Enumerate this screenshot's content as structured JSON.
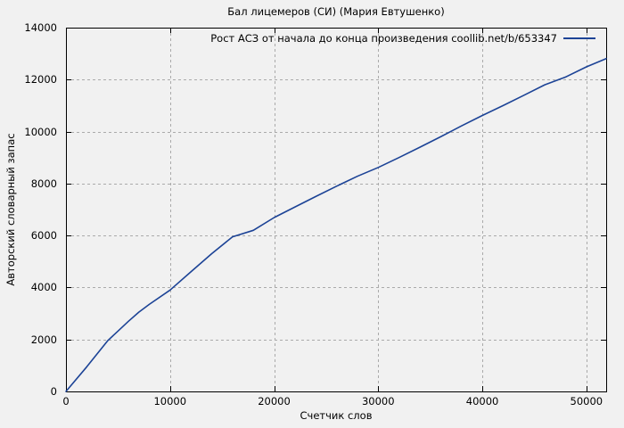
{
  "figure": {
    "kind": "gnuplot-style line chart"
  },
  "colors": {
    "background": "#f1f1f1",
    "axis": "#000000",
    "grid": "#aaaaaa",
    "curve": "#1c4396",
    "text": "#000000"
  },
  "chart_data": {
    "type": "line",
    "title": "Бал лицемеров (СИ) (Мария Евтушенко)",
    "xlabel": "Счетчик слов",
    "ylabel": "Авторский словарный запас",
    "xlim": [
      0,
      51900
    ],
    "ylim": [
      0,
      14000
    ],
    "grid": true,
    "grid_style": "dashed",
    "x_ticks": [
      0,
      10000,
      20000,
      30000,
      40000,
      50000
    ],
    "x_tick_labels": [
      "0",
      "10000",
      "20000",
      "30000",
      "40000",
      "50000"
    ],
    "y_ticks": [
      0,
      2000,
      4000,
      6000,
      8000,
      10000,
      12000,
      14000
    ],
    "y_tick_labels": [
      "0",
      "2000",
      "4000",
      "6000",
      "8000",
      "10000",
      "12000",
      "14000"
    ],
    "legend": {
      "position": "top-right-inside",
      "entries": [
        {
          "label": "Рост АСЗ от начала до конца произведения coollib.net/b/653347",
          "color": "#1c4396"
        }
      ]
    },
    "series": [
      {
        "name": "Рост АСЗ от начала до конца произведения coollib.net/b/653347",
        "color": "#1c4396",
        "x": [
          0,
          2000,
          4000,
          6000,
          7000,
          8000,
          10000,
          12000,
          14000,
          16000,
          18000,
          20000,
          22000,
          24000,
          26000,
          28000,
          30000,
          32000,
          34000,
          36000,
          38000,
          40000,
          42000,
          44000,
          46000,
          48000,
          50000,
          51900
        ],
        "y": [
          0,
          950,
          1950,
          2700,
          3050,
          3350,
          3900,
          4600,
          5300,
          5950,
          6200,
          6690,
          7100,
          7500,
          7900,
          8280,
          8620,
          9000,
          9400,
          9800,
          10220,
          10620,
          11000,
          11400,
          11800,
          12100,
          12490,
          12810
        ]
      }
    ]
  }
}
